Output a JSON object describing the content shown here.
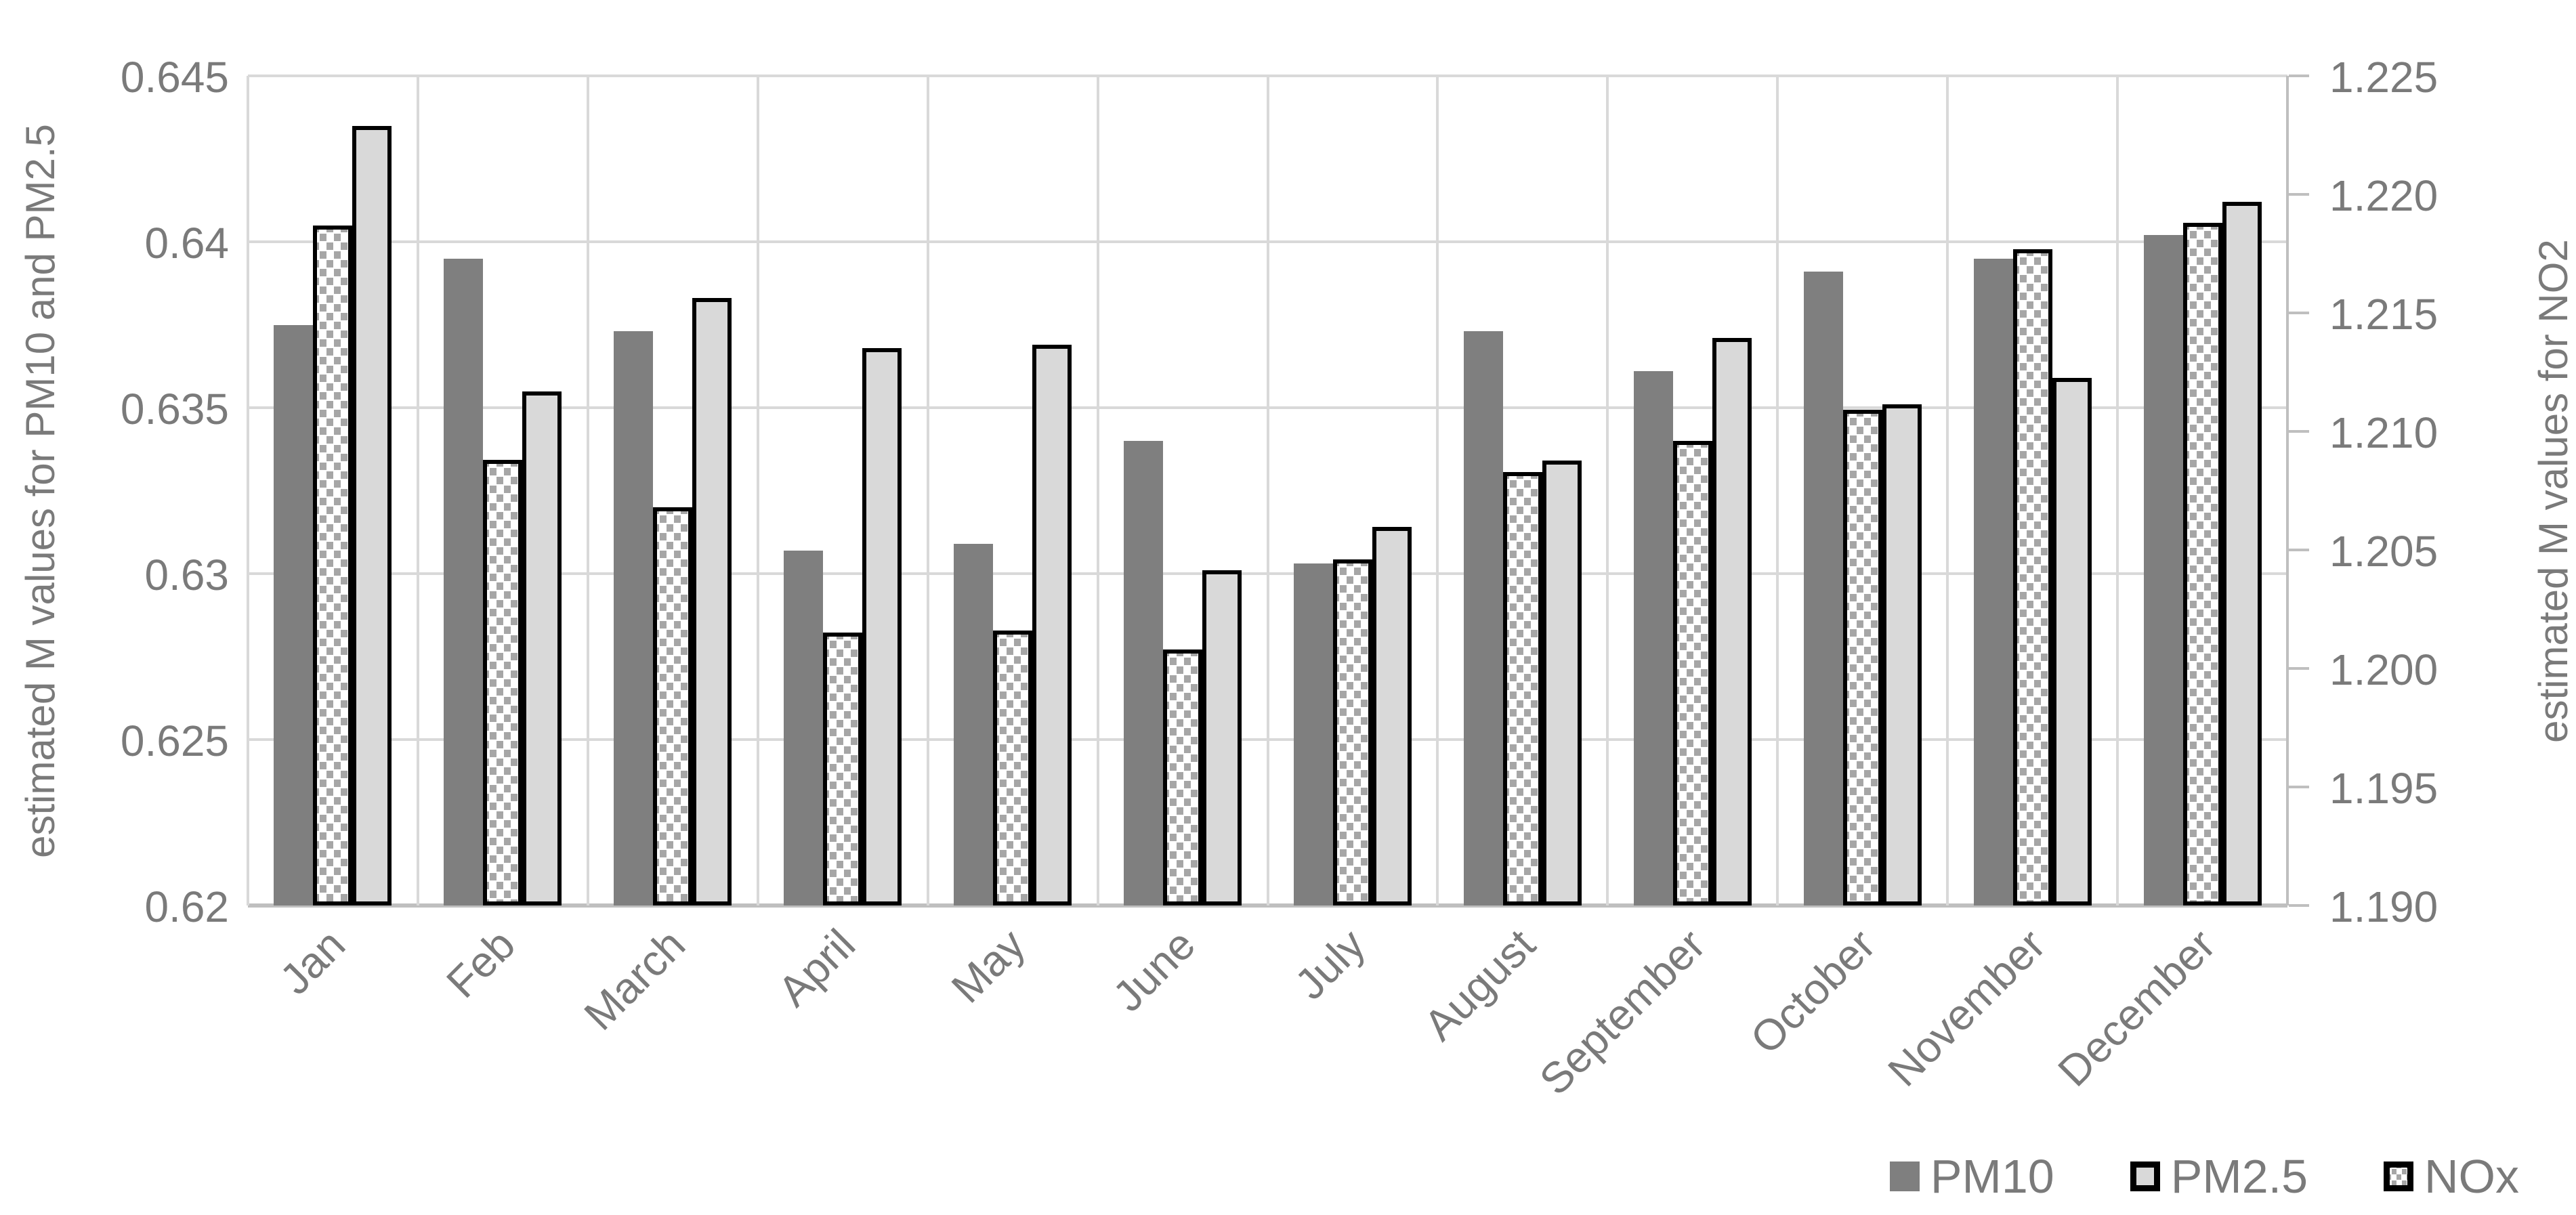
{
  "chart_data": {
    "type": "bar",
    "title": "",
    "categories": [
      "Jan",
      "Feb",
      "March",
      "April",
      "May",
      "June",
      "July",
      "August",
      "September",
      "October",
      "November",
      "December"
    ],
    "series": [
      {
        "name": "PM10",
        "axis": "left",
        "style": "solid-dark",
        "values": [
          0.6375,
          0.6395,
          0.6373,
          0.6307,
          0.6309,
          0.634,
          0.6303,
          0.6373,
          0.6361,
          0.6391,
          0.6395,
          0.6402
        ]
      },
      {
        "name": "NOx",
        "axis": "right",
        "style": "dotted-bordered",
        "values": [
          1.2187,
          1.2088,
          1.2068,
          1.2015,
          1.2016,
          1.2008,
          1.2046,
          1.2083,
          1.2096,
          1.2109,
          1.2177,
          1.2188
        ]
      },
      {
        "name": "PM2.5",
        "axis": "left",
        "style": "solid-light-bordered",
        "values": [
          0.6435,
          0.6355,
          0.6383,
          0.6368,
          0.6369,
          0.6301,
          0.6314,
          0.6334,
          0.6371,
          0.6351,
          0.6359,
          0.6412
        ]
      }
    ],
    "plot_order": [
      "PM10",
      "NOx",
      "PM2.5"
    ],
    "legend": [
      {
        "label": "PM10",
        "style": "solid-dark"
      },
      {
        "label": "PM2.5",
        "style": "solid-light-bordered"
      },
      {
        "label": "NOx",
        "style": "dotted-bordered"
      }
    ],
    "left_axis": {
      "title": "estimated M values for PM10 and PM2.5",
      "min": 0.62,
      "max": 0.645,
      "tick_labels": [
        "0.645",
        "0.64",
        "0.635",
        "0.63",
        "0.625",
        "0.62"
      ]
    },
    "right_axis": {
      "title": "estimated M values for NO2",
      "min": 1.19,
      "max": 1.225,
      "tick_labels": [
        "1.225",
        "1.220",
        "1.215",
        "1.210",
        "1.205",
        "1.200",
        "1.195",
        "1.190"
      ]
    },
    "grid": "horizontal-and-vertical",
    "legend_position": "bottom-right",
    "colors": {
      "pm10_fill": "#7f7f7f",
      "pm25_fill": "#d9d9d9",
      "nox_dot": "#a6a6a6",
      "nox_background": "#ffffff",
      "bar_border": "#000000",
      "gridline": "#d9d9d9",
      "axis_line": "#bfbfbf",
      "text": "#7a7a7a"
    }
  }
}
